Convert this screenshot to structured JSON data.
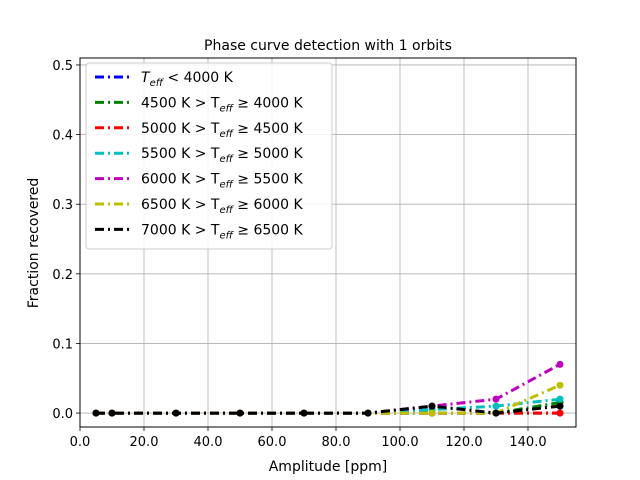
{
  "chart_data": {
    "type": "line",
    "title": "Phase curve detection with 1 orbits",
    "xlabel": "Amplitude [ppm]",
    "ylabel": "Fraction recovered",
    "xlim": [
      0,
      155
    ],
    "ylim": [
      -0.02,
      0.51
    ],
    "xticks": [
      0,
      20,
      40,
      60,
      80,
      100,
      120,
      140
    ],
    "xtick_labels": [
      "0.0",
      "20.0",
      "40.0",
      "60.0",
      "80.0",
      "100.0",
      "120.0",
      "140.0"
    ],
    "yticks": [
      0.0,
      0.1,
      0.2,
      0.3,
      0.4,
      0.5
    ],
    "ytick_labels": [
      "0.0",
      "0.1",
      "0.2",
      "0.3",
      "0.4",
      "0.5"
    ],
    "grid": true,
    "legend_placement": "top-left",
    "x": [
      5,
      10,
      30,
      50,
      70,
      90,
      110,
      130,
      150
    ],
    "series": [
      {
        "legend_parts": [
          "T",
          "eff",
          " < 4000 K"
        ],
        "color": "#0000ff",
        "values": [
          0,
          0,
          0,
          0,
          0,
          0,
          0,
          0,
          0
        ]
      },
      {
        "legend_parts": [
          "4500 K > T",
          "eff",
          " ≥ 4000 K"
        ],
        "color": "#008000",
        "values": [
          0,
          0,
          0,
          0,
          0,
          0,
          0,
          0,
          0.015
        ]
      },
      {
        "legend_parts": [
          "5000 K > T",
          "eff",
          " ≥ 4500 K"
        ],
        "color": "#ff0000",
        "values": [
          0,
          0,
          0,
          0,
          0,
          0,
          0,
          0,
          0
        ]
      },
      {
        "legend_parts": [
          "5500 K > T",
          "eff",
          " ≥ 5000 K"
        ],
        "color": "#00bfbf",
        "values": [
          0,
          0,
          0,
          0,
          0,
          0,
          0.005,
          0.01,
          0.02
        ]
      },
      {
        "legend_parts": [
          "6000 K > T",
          "eff",
          " ≥ 5500 K"
        ],
        "color": "#bf00bf",
        "values": [
          0,
          0,
          0,
          0,
          0,
          0,
          0.01,
          0.02,
          0.07
        ]
      },
      {
        "legend_parts": [
          "6500 K > T",
          "eff",
          " ≥ 6000 K"
        ],
        "color": "#bfbf00",
        "values": [
          0,
          0,
          0,
          0,
          0,
          0,
          0,
          0,
          0.04
        ]
      },
      {
        "legend_parts": [
          "7000 K > T",
          "eff",
          " ≥ 6500 K"
        ],
        "color": "#000000",
        "values": [
          0,
          0,
          0,
          0,
          0,
          0,
          0.01,
          0,
          0.01
        ]
      }
    ]
  }
}
